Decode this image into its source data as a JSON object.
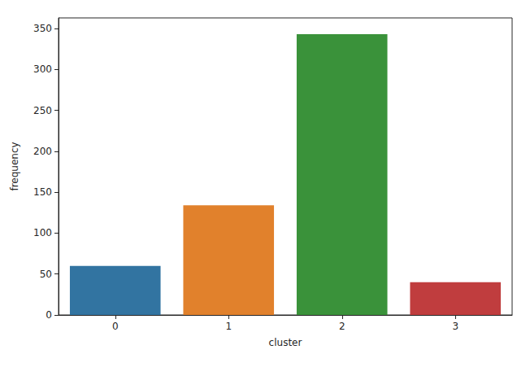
{
  "chart_data": {
    "type": "bar",
    "categories": [
      "0",
      "1",
      "2",
      "3"
    ],
    "values": [
      60,
      134,
      343,
      40
    ],
    "colors": [
      "#3274a1",
      "#e1812c",
      "#3a923a",
      "#c03d3e"
    ],
    "x_label": "cluster",
    "y_label": "frequency",
    "ylim": [
      0,
      363
    ],
    "yticks": [
      0,
      50,
      100,
      150,
      200,
      250,
      300,
      350
    ],
    "grid": false
  }
}
